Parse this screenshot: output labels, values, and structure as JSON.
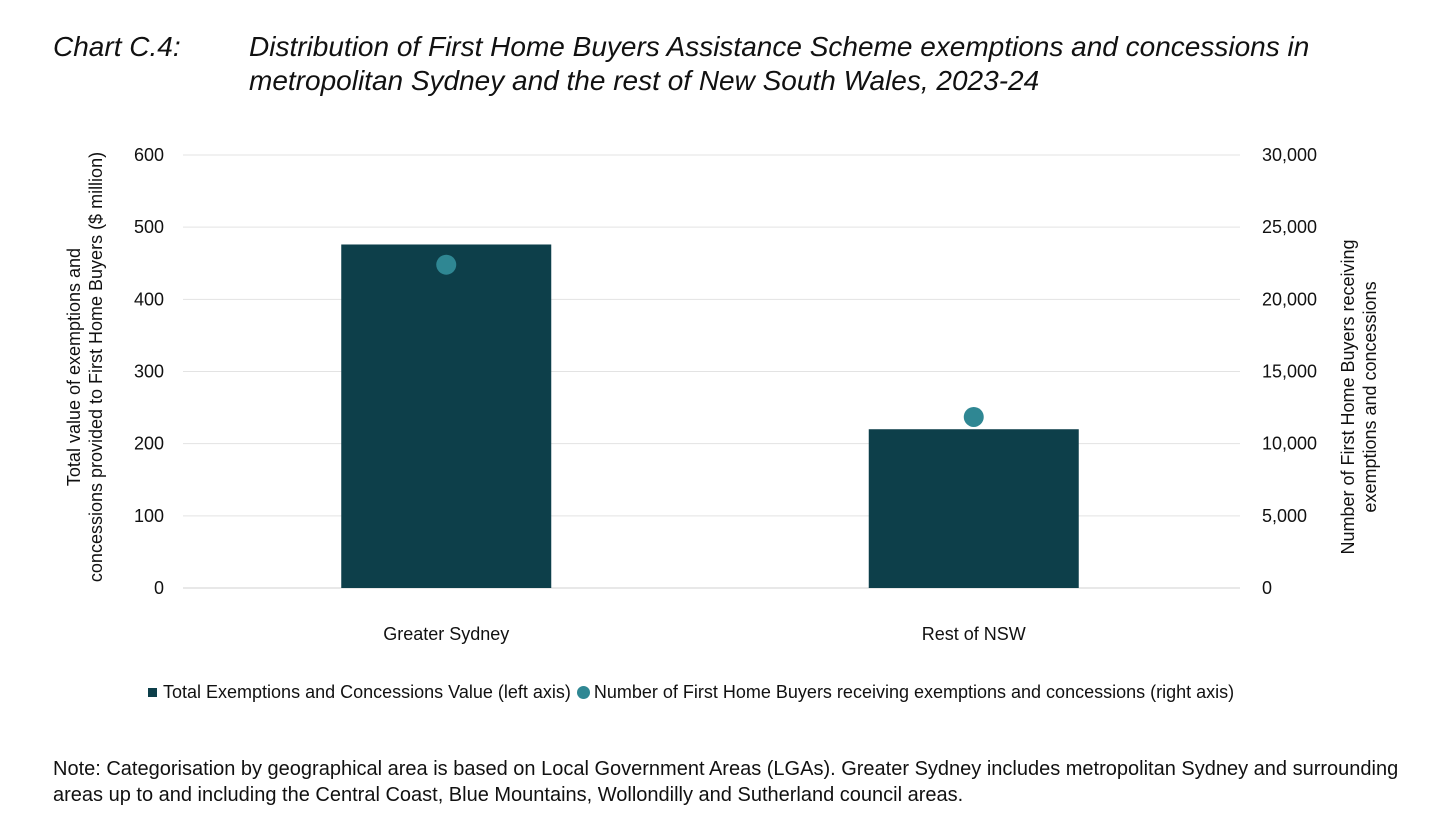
{
  "heading": {
    "label": "Chart C.4:",
    "title": "Distribution of First Home Buyers Assistance Scheme exemptions and concessions in metropolitan Sydney and the rest of New South Wales, 2023-24"
  },
  "chart_data": {
    "type": "bar",
    "categories": [
      "Greater Sydney",
      "Rest of NSW"
    ],
    "series": [
      {
        "name": "Total Exemptions and Concessions Value (left axis)",
        "kind": "bar",
        "axis": "left",
        "values": [
          476,
          220
        ],
        "color": "#0d3f4a"
      },
      {
        "name": "Number of First Home Buyers receiving exemptions and concessions (right axis)",
        "kind": "scatter",
        "axis": "right",
        "values": [
          22400,
          11850
        ],
        "color": "#2f8793"
      }
    ],
    "ylabel": "Total value of exemptions and concessions provided to First Home Buyers ($ million)",
    "y2label": "Number of First Home Buyers receiving exemptions and concessions",
    "ylim": [
      0,
      600
    ],
    "y2lim": [
      0,
      30000
    ],
    "yticks": [
      "0",
      "100",
      "200",
      "300",
      "400",
      "500",
      "600"
    ],
    "y2ticks": [
      "0",
      "5,000",
      "10,000",
      "15,000",
      "20,000",
      "25,000",
      "30,000"
    ],
    "grid": true,
    "legend_position": "bottom"
  },
  "note": "Note: Categorisation by geographical area is based on Local Government Areas (LGAs). Greater Sydney includes metropolitan Sydney and surrounding areas up to and including the Central Coast, Blue Mountains, Wollondilly and Sutherland council areas."
}
